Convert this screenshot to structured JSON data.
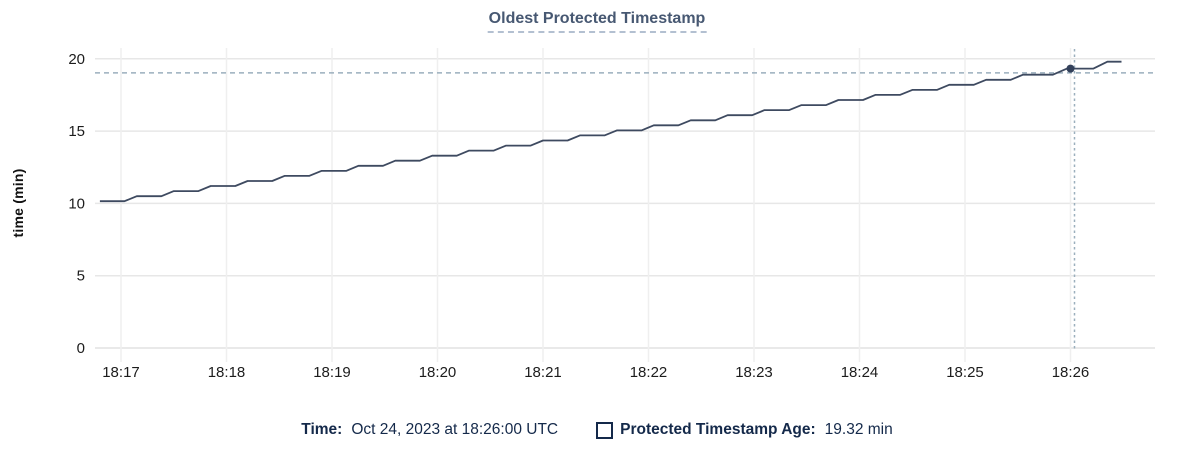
{
  "title": "Oldest Protected Timestamp",
  "chart_data": {
    "type": "line",
    "title": "Oldest Protected Timestamp",
    "xlabel": "",
    "ylabel": "time (min)",
    "ylim": [
      0,
      20
    ],
    "yticks": [
      0,
      5,
      10,
      15,
      20
    ],
    "xticks": [
      "18:17",
      "18:18",
      "18:19",
      "18:20",
      "18:21",
      "18:22",
      "18:23",
      "18:24",
      "18:25",
      "18:26"
    ],
    "grid": true,
    "legend_position": "bottom",
    "series": [
      {
        "name": "Protected Timestamp Age",
        "units": "min",
        "points_t_seconds_after_18_17": [
          [
            -12,
            10.15
          ],
          [
            2,
            10.15
          ],
          [
            9,
            10.5
          ],
          [
            23,
            10.5
          ],
          [
            30,
            10.85
          ],
          [
            44,
            10.85
          ],
          [
            51,
            11.2
          ],
          [
            65,
            11.2
          ],
          [
            72,
            11.55
          ],
          [
            86,
            11.55
          ],
          [
            93,
            11.9
          ],
          [
            107,
            11.9
          ],
          [
            114,
            12.25
          ],
          [
            128,
            12.25
          ],
          [
            135,
            12.6
          ],
          [
            149,
            12.6
          ],
          [
            156,
            12.95
          ],
          [
            170,
            12.95
          ],
          [
            177,
            13.3
          ],
          [
            191,
            13.3
          ],
          [
            198,
            13.65
          ],
          [
            212,
            13.65
          ],
          [
            219,
            14.0
          ],
          [
            233,
            14.0
          ],
          [
            240,
            14.35
          ],
          [
            254,
            14.35
          ],
          [
            261,
            14.7
          ],
          [
            275,
            14.7
          ],
          [
            282,
            15.05
          ],
          [
            296,
            15.05
          ],
          [
            303,
            15.4
          ],
          [
            317,
            15.4
          ],
          [
            324,
            15.75
          ],
          [
            338,
            15.75
          ],
          [
            345,
            16.1
          ],
          [
            359,
            16.1
          ],
          [
            366,
            16.45
          ],
          [
            380,
            16.45
          ],
          [
            387,
            16.8
          ],
          [
            401,
            16.8
          ],
          [
            408,
            17.15
          ],
          [
            422,
            17.15
          ],
          [
            429,
            17.5
          ],
          [
            443,
            17.5
          ],
          [
            450,
            17.85
          ],
          [
            464,
            17.85
          ],
          [
            471,
            18.2
          ],
          [
            485,
            18.2
          ],
          [
            492,
            18.55
          ],
          [
            506,
            18.55
          ],
          [
            513,
            18.9
          ],
          [
            530,
            18.9
          ],
          [
            538,
            19.32
          ],
          [
            553,
            19.32
          ],
          [
            561,
            19.8
          ],
          [
            569,
            19.8
          ]
        ]
      }
    ],
    "highlight": {
      "time_label": "18:26:00",
      "t_seconds_after_18_17": 540,
      "value": 19.32
    }
  },
  "tooltip": {
    "time_label": "Time:",
    "time_value": "Oct 24, 2023 at 18:26:00 UTC",
    "series_label": "Protected Timestamp Age:",
    "series_value": "19.32 min"
  },
  "colors": {
    "title": "#475872",
    "line": "#3e4a60",
    "dot": "#32405a",
    "legend_text": "#14294a",
    "crosshair": "#9bafbd",
    "grid_vertical": "#efefef",
    "grid_horizontal": "#e7e7e7",
    "axis_line": "#e2e2e2",
    "tick_text": "#1c1c1c"
  }
}
